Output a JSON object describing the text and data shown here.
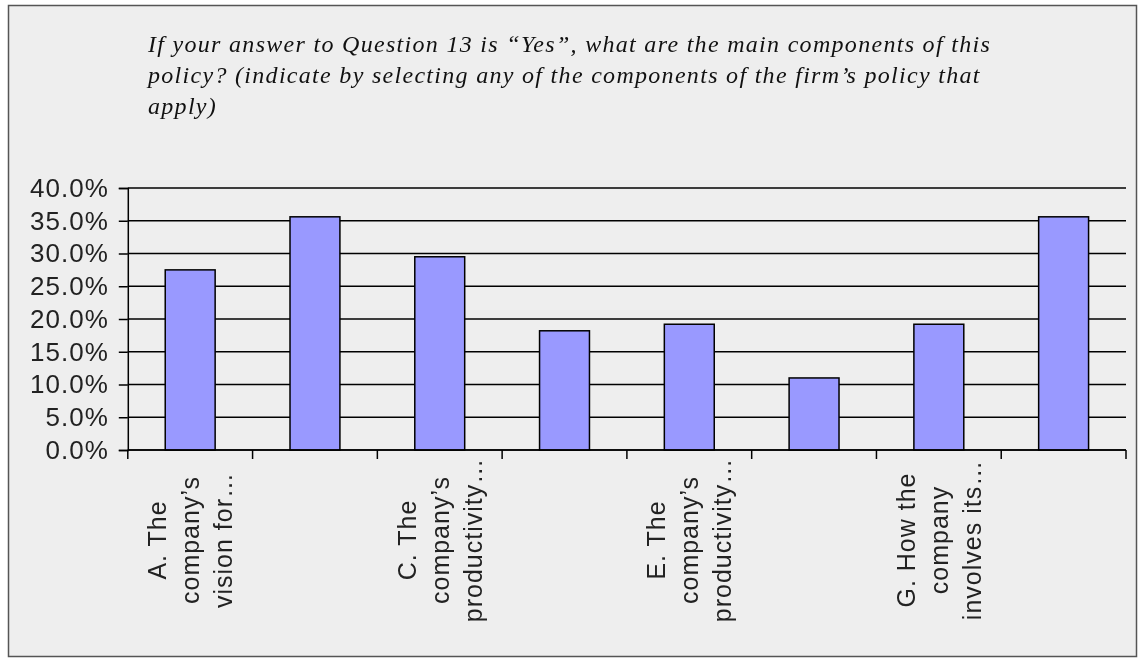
{
  "chart_data": {
    "type": "bar",
    "title": "If your answer to Question 13 is “Yes”, what are the main components of this policy? (indicate by selecting any of the components of the firm’s policy that apply)",
    "categories": [
      "A. The company’s vision for…",
      null,
      "C. The company’s productivity…",
      null,
      "E. The company’s productivity…",
      null,
      "G. How the company involves its…",
      null
    ],
    "values": [
      27.5,
      35.6,
      29.5,
      18.2,
      19.2,
      11.0,
      19.2,
      35.6
    ],
    "color": "#9999ff",
    "ylim": [
      0,
      40
    ],
    "yticks": [
      {
        "value": 0,
        "label": "0.0%"
      },
      {
        "value": 5,
        "label": "5.0%"
      },
      {
        "value": 10,
        "label": "10.0%"
      },
      {
        "value": 15,
        "label": "15.0%"
      },
      {
        "value": 20,
        "label": "20.0%"
      },
      {
        "value": 25,
        "label": "25.0%"
      },
      {
        "value": 30,
        "label": "30.0%"
      },
      {
        "value": 35,
        "label": "35.0%"
      },
      {
        "value": 40,
        "label": "40.0%"
      }
    ],
    "grid": "y"
  }
}
